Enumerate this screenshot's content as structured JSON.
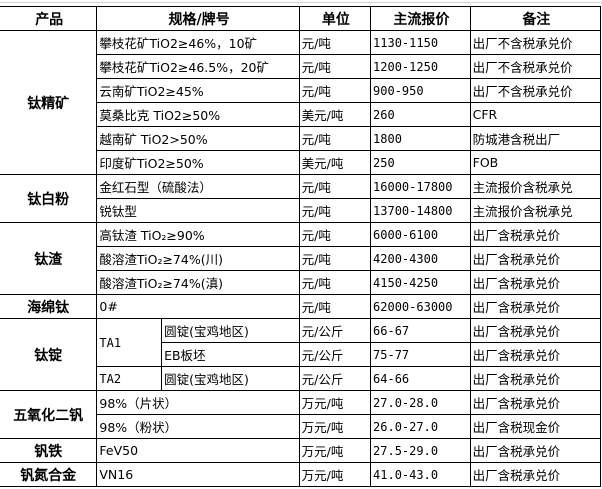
{
  "headers": [
    "产品",
    "规格/牌号",
    "单位",
    "主流报价",
    "备注"
  ],
  "groups": {
    "titanium_concentrate": {
      "name": "钛精矿",
      "rows": [
        {
          "spec": "攀枝花矿TiO2≥46%，10矿",
          "unit": "元/吨",
          "price": "1130-1150",
          "note": "出厂不含税承兑价"
        },
        {
          "spec": "攀枝花矿TiO2≥46.5%，20矿",
          "unit": "元/吨",
          "price": "1200-1250",
          "note": "出厂不含税承兑价"
        },
        {
          "spec": "云南矿TiO2≥45%",
          "unit": "元/吨",
          "price": "900-950",
          "note": "出厂不含税承兑价"
        },
        {
          "spec": "莫桑比克 TiO2≥50%",
          "unit": "美元/吨",
          "price": "260",
          "note": "CFR"
        },
        {
          "spec": "越南矿 TiO2>50%",
          "unit": "元/吨",
          "price": "1800",
          "note": "防城港含税出厂"
        },
        {
          "spec": "印度矿TiO2≥50%",
          "unit": "美元/吨",
          "price": "250",
          "note": "FOB"
        }
      ]
    },
    "titanium_dioxide": {
      "name": "钛白粉",
      "rows": [
        {
          "spec": "金红石型（硫酸法）",
          "unit": "元/吨",
          "price": "16000-17800",
          "note": "主流报价含税承兑"
        },
        {
          "spec": "锐钛型",
          "unit": "元/吨",
          "price": "13700-14800",
          "note": "主流报价含税承兑"
        }
      ]
    },
    "titanium_slag": {
      "name": "钛渣",
      "rows": [
        {
          "spec": "高钛渣 TiO₂≥90%",
          "unit": "元/吨",
          "price": "6000-6100",
          "note": "出厂含税承兑价"
        },
        {
          "spec": "酸溶渣TiO₂≥74%(川)",
          "unit": "元/吨",
          "price": "4200-4300",
          "note": "出厂含税承兑价"
        },
        {
          "spec": "酸溶渣TiO₂≥74%(滇)",
          "unit": "元/吨",
          "price": "4150-4250",
          "note": "出厂含税承兑价"
        }
      ]
    },
    "titanium_sponge": {
      "name": "海绵钛",
      "rows": [
        {
          "spec": "0#",
          "unit": "元/吨",
          "price": "62000-63000",
          "note": "出厂含税承兑价"
        }
      ]
    },
    "titanium_ingot": {
      "name": "钛锭",
      "grades": [
        "TA1",
        "TA2"
      ],
      "rows": [
        {
          "spec": "圆锭(宝鸡地区)",
          "unit": "元/公斤",
          "price": "66-67",
          "note": "出厂含税承兑价"
        },
        {
          "spec": "EB板坯",
          "unit": "元/公斤",
          "price": "75-77",
          "note": "出厂含税承兑价"
        },
        {
          "spec": "圆锭(宝鸡地区)",
          "unit": "元/公斤",
          "price": "64-66",
          "note": "出厂含税承兑价"
        }
      ]
    },
    "vanadium_pentoxide": {
      "name": "五氧化二钒",
      "rows": [
        {
          "spec": "98%（片状）",
          "unit": "万元/吨",
          "price": "27.0-28.0",
          "note": "出厂含税承兑价"
        },
        {
          "spec": "98%（粉状）",
          "unit": "万元/吨",
          "price": "26.0-27.0",
          "note": "出厂含税现金价"
        }
      ]
    },
    "ferrovanadium": {
      "name": "钒铁",
      "rows": [
        {
          "spec": "FeV50",
          "unit": "万元/吨",
          "price": "27.5-29.0",
          "note": "出厂含税承兑价"
        }
      ]
    },
    "vanadium_nitrogen": {
      "name": "钒氮合金",
      "rows": [
        {
          "spec": "VN16",
          "unit": "万元/吨",
          "price": "41.0-43.0",
          "note": "出厂含税承兑价"
        }
      ]
    }
  }
}
